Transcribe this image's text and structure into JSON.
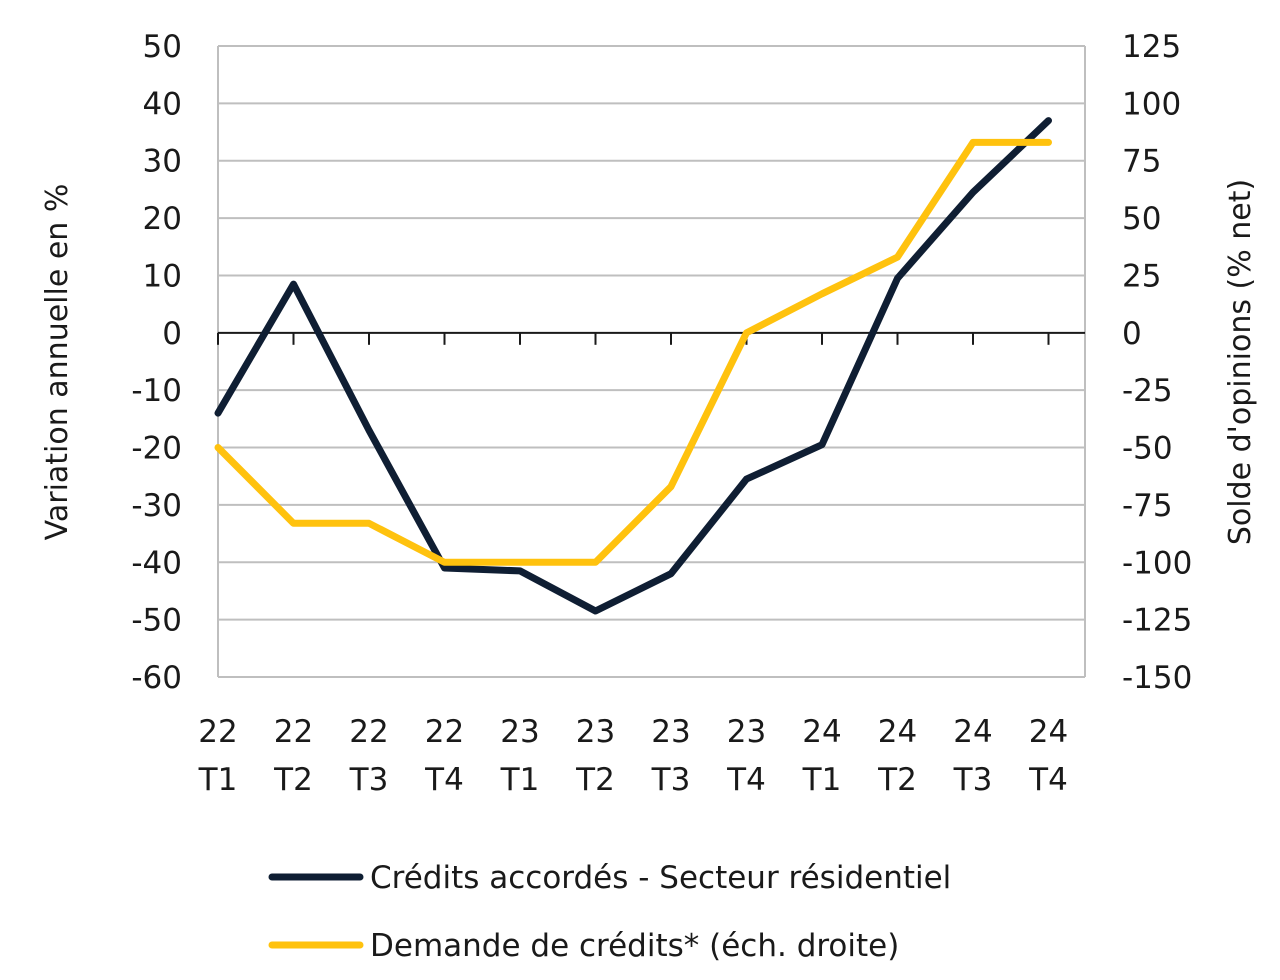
{
  "chart_data": {
    "type": "line",
    "categories": [
      [
        "22",
        "T1"
      ],
      [
        "22",
        "T2"
      ],
      [
        "22",
        "T3"
      ],
      [
        "22",
        "T4"
      ],
      [
        "23",
        "T1"
      ],
      [
        "23",
        "T2"
      ],
      [
        "23",
        "T3"
      ],
      [
        "23",
        "T4"
      ],
      [
        "24",
        "T1"
      ],
      [
        "24",
        "T2"
      ],
      [
        "24",
        "T3"
      ],
      [
        "24",
        "T4"
      ]
    ],
    "ylabel_left": "Variation annuelle en %",
    "ylabel_right": "Solde d'opinions (% net)",
    "ylim_left": [
      -60,
      50
    ],
    "ylim_right": [
      -150,
      125
    ],
    "yticks_left": [
      50,
      40,
      30,
      20,
      10,
      0,
      -10,
      -20,
      -30,
      -40,
      -50,
      -60
    ],
    "yticks_right": [
      125,
      100,
      75,
      50,
      25,
      0,
      -25,
      -50,
      -75,
      -100,
      -125,
      -150
    ],
    "grid": true,
    "legend_position": "bottom",
    "series": [
      {
        "name": "Crédits accordés - Secteur résidentiel",
        "axis": "left",
        "color": "#0f1e33",
        "values": [
          -14,
          8.5,
          -17,
          -41,
          -41.5,
          -48.5,
          -42,
          -25.5,
          -19.5,
          9.5,
          24.5,
          37
        ]
      },
      {
        "name": "Demande de crédits* (éch. droite)",
        "axis": "right",
        "color": "#ffc20e",
        "values": [
          -50,
          -83,
          -83,
          -100,
          -100,
          -100,
          -67,
          0,
          17,
          33,
          83,
          83
        ]
      }
    ]
  }
}
